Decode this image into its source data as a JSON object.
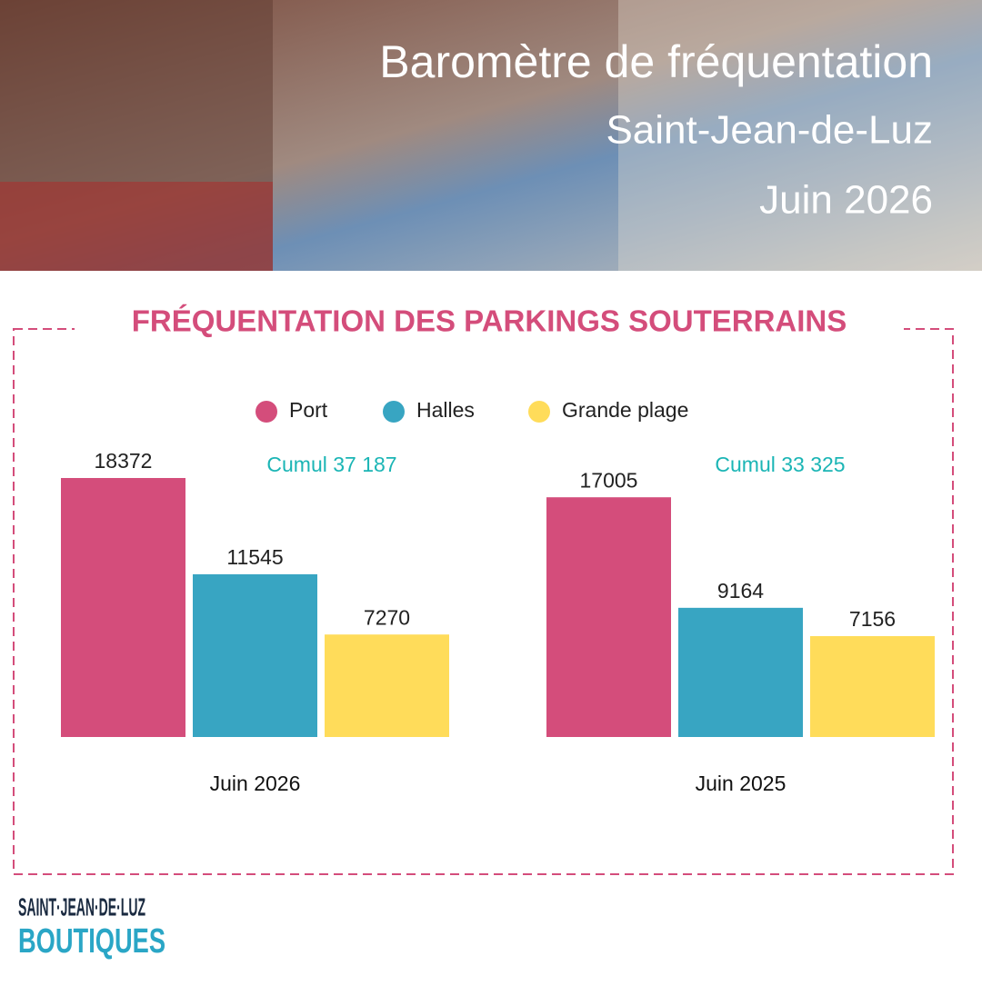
{
  "header": {
    "title": "Baromètre de fréquentation",
    "subtitle": "Saint-Jean-de-Luz",
    "date": "Juin 2026"
  },
  "chart_data": {
    "type": "bar",
    "title": "FRÉQUENTATION DES PARKINGS SOUTERRAINS",
    "categories": [
      "Juin 2026",
      "Juin 2025"
    ],
    "series": [
      {
        "name": "Port",
        "color": "#d44d7b",
        "values": [
          18372,
          17005
        ]
      },
      {
        "name": "Halles",
        "color": "#38a5c2",
        "values": [
          11545,
          9164
        ]
      },
      {
        "name": "Grande plage",
        "color": "#ffdc5a",
        "values": [
          7270,
          7156
        ]
      }
    ],
    "annotations": [
      "Cumul 37 187",
      "Cumul 33 325"
    ],
    "annotation_color": "#1bb5b5"
  },
  "logo": {
    "line1": "SAINT·JEAN·DE·LUZ",
    "line2": "BOUTIQUES"
  }
}
